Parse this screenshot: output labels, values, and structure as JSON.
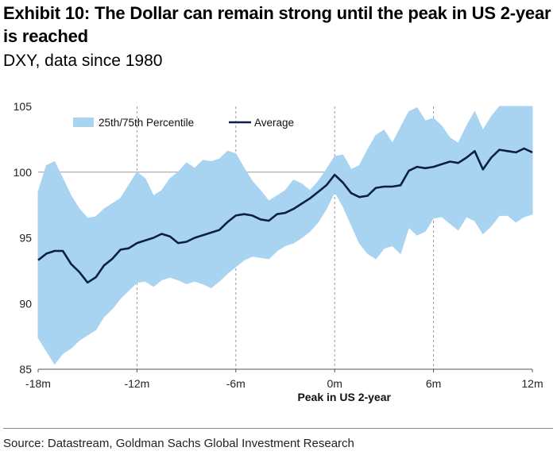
{
  "title": "Exhibit 10: The Dollar can remain strong until the peak in US 2-year is reached",
  "subtitle": "DXY, data since 1980",
  "source": "Source: Datastream, Goldman Sachs Global Investment Research",
  "colors": {
    "band": "#a8d4f2",
    "average": "#0b1f45",
    "grid": "#9a9a9a",
    "axis": "#555555"
  },
  "chart_data": {
    "type": "area",
    "xlabel": "Peak in US 2-year",
    "ylabel": "",
    "x_ticks": [
      "-18m",
      "-12m",
      "-6m",
      "0m",
      "6m",
      "12m"
    ],
    "x_range": [
      -18,
      12
    ],
    "ylim": [
      85,
      105
    ],
    "y_ticks": [
      85,
      90,
      95,
      100,
      105
    ],
    "legend": {
      "position": "top-left",
      "entries": [
        "25th/75th Percentile",
        "Average"
      ]
    },
    "grid": {
      "horizontal_reference": 100,
      "vertical_dashed_at": [
        -12,
        -6,
        0,
        6
      ]
    },
    "series": [
      {
        "name": "Average",
        "kind": "line",
        "x": [
          -18,
          -17.5,
          -17,
          -16.5,
          -16,
          -15.5,
          -15,
          -14.5,
          -14,
          -13.5,
          -13,
          -12.5,
          -12,
          -11.5,
          -11,
          -10.5,
          -10,
          -9.5,
          -9,
          -8.5,
          -8,
          -7.5,
          -7,
          -6.5,
          -6,
          -5.5,
          -5,
          -4.5,
          -4,
          -3.5,
          -3,
          -2.5,
          -2,
          -1.5,
          -1,
          -0.5,
          0,
          0.5,
          1,
          1.5,
          2,
          2.5,
          3,
          3.5,
          4,
          4.5,
          5,
          5.5,
          6,
          6.5,
          7,
          7.5,
          8,
          8.5,
          9,
          9.5,
          10,
          10.5,
          11,
          11.5,
          12
        ],
        "values": [
          93.3,
          93.8,
          94.0,
          94.0,
          93.0,
          92.4,
          91.6,
          92.0,
          92.9,
          93.4,
          94.1,
          94.2,
          94.6,
          94.8,
          95.0,
          95.3,
          95.1,
          94.6,
          94.7,
          95.0,
          95.2,
          95.4,
          95.6,
          96.2,
          96.7,
          96.8,
          96.7,
          96.4,
          96.3,
          96.8,
          96.9,
          97.2,
          97.6,
          98.0,
          98.5,
          99.0,
          99.8,
          99.2,
          98.4,
          98.1,
          98.2,
          98.8,
          98.9,
          98.9,
          99.0,
          100.1,
          100.4,
          100.3,
          100.4,
          100.6,
          100.8,
          100.7,
          101.1,
          101.6,
          100.2,
          101.1,
          101.7,
          101.6,
          101.5,
          101.8,
          101.5
        ]
      },
      {
        "name": "25th/75th Percentile",
        "kind": "band",
        "x": [
          -18,
          -17.5,
          -17,
          -16.5,
          -16,
          -15.5,
          -15,
          -14.5,
          -14,
          -13.5,
          -13,
          -12.5,
          -12,
          -11.5,
          -11,
          -10.5,
          -10,
          -9.5,
          -9,
          -8.5,
          -8,
          -7.5,
          -7,
          -6.5,
          -6,
          -5.5,
          -5,
          -4.5,
          -4,
          -3.5,
          -3,
          -2.5,
          -2,
          -1.5,
          -1,
          -0.5,
          0,
          0.5,
          1,
          1.5,
          2,
          2.5,
          3,
          3.5,
          4,
          4.5,
          5,
          5.5,
          6,
          6.5,
          7,
          7.5,
          8,
          8.5,
          9,
          9.5,
          10,
          10.5,
          11,
          11.5,
          12
        ],
        "upper": [
          98.5,
          100.5,
          100.8,
          99.5,
          98.2,
          97.2,
          96.5,
          96.6,
          97.2,
          97.6,
          98.0,
          99.0,
          100.0,
          99.5,
          98.2,
          98.6,
          99.5,
          100.0,
          100.7,
          100.3,
          100.9,
          100.8,
          101.0,
          101.6,
          101.4,
          100.3,
          99.3,
          98.6,
          97.8,
          98.2,
          98.6,
          99.4,
          99.1,
          98.6,
          99.3,
          100.2,
          101.2,
          101.3,
          100.2,
          100.5,
          101.7,
          102.8,
          103.2,
          102.2,
          103.4,
          104.6,
          104.9,
          103.9,
          104.1,
          103.5,
          102.6,
          102.2,
          103.5,
          104.6,
          103.2,
          104.2,
          105.0,
          105.0,
          105.0,
          105.0,
          105.0
        ],
        "lower": [
          87.4,
          86.4,
          85.4,
          86.2,
          86.6,
          87.2,
          87.6,
          88.0,
          89.0,
          89.6,
          90.4,
          91.0,
          91.6,
          91.7,
          91.3,
          91.8,
          92.0,
          91.8,
          91.5,
          91.7,
          91.5,
          91.2,
          91.7,
          92.3,
          92.8,
          93.3,
          93.6,
          93.5,
          93.4,
          94.0,
          94.4,
          94.6,
          95.0,
          95.5,
          96.2,
          97.2,
          98.5,
          97.4,
          96.0,
          94.6,
          93.8,
          93.4,
          94.2,
          94.4,
          93.8,
          95.8,
          95.2,
          95.5,
          96.5,
          96.6,
          96.1,
          95.6,
          96.6,
          96.3,
          95.3,
          95.9,
          96.7,
          96.7,
          96.2,
          96.6,
          96.8
        ]
      }
    ]
  }
}
